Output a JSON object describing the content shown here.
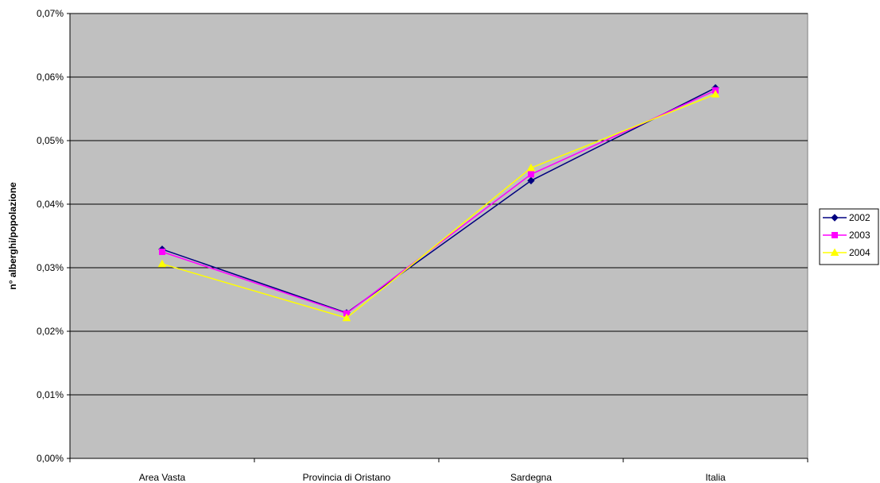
{
  "chart_data": {
    "type": "line",
    "title": "",
    "xlabel": "",
    "ylabel": "n° alberghi/popolazione",
    "categories": [
      "Area Vasta",
      "Provincia di Oristano",
      "Sardegna",
      "Italia"
    ],
    "ylim": [
      0,
      0.07
    ],
    "yticks": [
      0,
      0.01,
      0.02,
      0.03,
      0.04,
      0.05,
      0.06,
      0.07
    ],
    "ytick_labels": [
      "0,00%",
      "0,01%",
      "0,02%",
      "0,03%",
      "0,04%",
      "0,05%",
      "0,06%",
      "0,07%"
    ],
    "y_unit": "%",
    "grid": true,
    "legend_position": "right",
    "plot_background": "#C0C0C0",
    "series": [
      {
        "name": "2002",
        "values": [
          0.0329,
          0.0229,
          0.0437,
          0.0583
        ],
        "color": "#000080",
        "marker": "diamond"
      },
      {
        "name": "2003",
        "values": [
          0.0325,
          0.0228,
          0.0447,
          0.0579
        ],
        "color": "#FF00FF",
        "marker": "square"
      },
      {
        "name": "2004",
        "values": [
          0.0306,
          0.0221,
          0.0457,
          0.0573
        ],
        "color": "#FFFF00",
        "marker": "triangle"
      }
    ]
  }
}
